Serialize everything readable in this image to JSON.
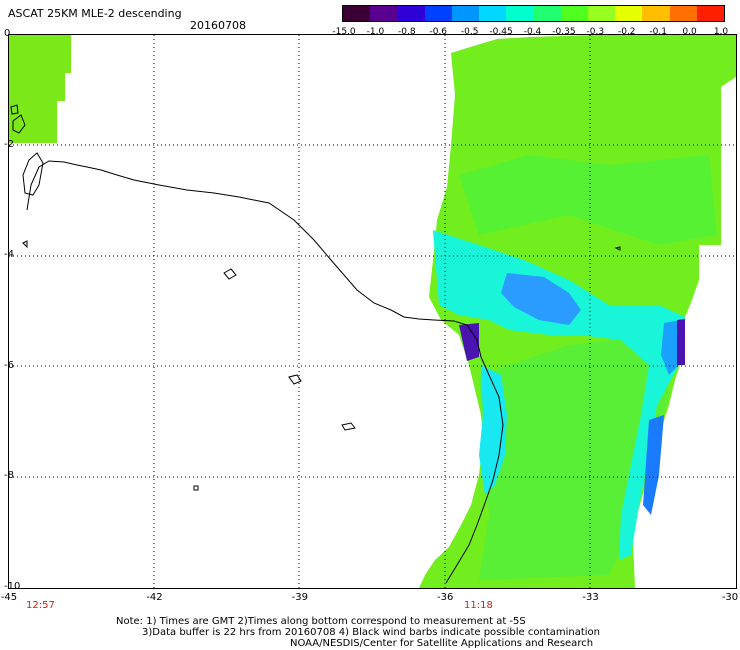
{
  "header": {
    "title": "ASCAT 25KM MLE-2 descending",
    "date": "20160708"
  },
  "colorbar": {
    "labels": [
      "-15.0",
      "-1.0",
      "-0.8",
      "-0.6",
      "-0.5",
      "-0.45",
      "-0.4",
      "-0.35",
      "-0.3",
      "-0.2",
      "-0.1",
      "0.0",
      "1.0"
    ],
    "colors": [
      "#3a0033",
      "#5a0090",
      "#3000d8",
      "#0040ff",
      "#0096ff",
      "#00d8ff",
      "#00ffcc",
      "#20ff70",
      "#50ff20",
      "#96ff20",
      "#e6ff00",
      "#ffbf00",
      "#ff7000",
      "#ff2000"
    ]
  },
  "axes": {
    "x_ticks": [
      "-45",
      "-42",
      "-39",
      "-36",
      "-33",
      "-30"
    ],
    "y_ticks": [
      "0",
      "-2",
      "-4",
      "-6",
      "-8",
      "-10"
    ]
  },
  "times": {
    "left": "12:57",
    "right": "11:18"
  },
  "notes": {
    "line1": "Note: 1) Times are GMT 2)Times along bottom correspond to measurement at -5S",
    "line2": "3)Data buffer is 22 hrs from 20160708 4) Black wind barbs indicate possible contamination",
    "line3": "NOAA/NESDIS/Center for Satellite Applications and Research"
  }
}
